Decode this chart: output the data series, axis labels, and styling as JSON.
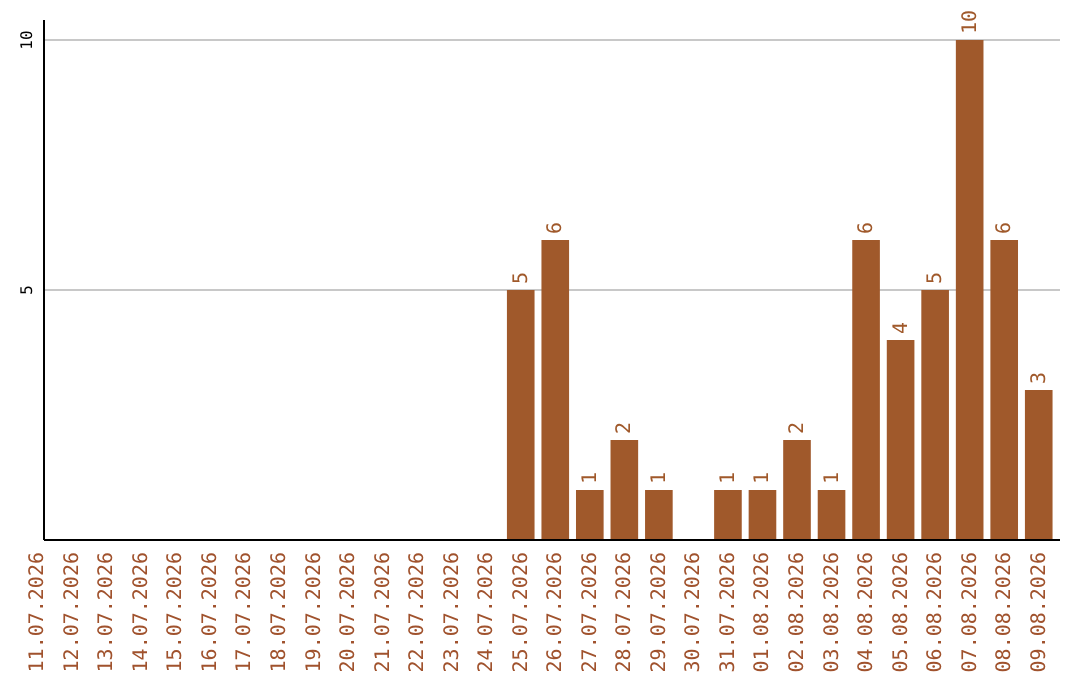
{
  "chart_data": {
    "type": "bar",
    "categories": [
      "11.07.2026",
      "12.07.2026",
      "13.07.2026",
      "14.07.2026",
      "15.07.2026",
      "16.07.2026",
      "17.07.2026",
      "18.07.2026",
      "19.07.2026",
      "20.07.2026",
      "21.07.2026",
      "22.07.2026",
      "23.07.2026",
      "24.07.2026",
      "25.07.2026",
      "26.07.2026",
      "27.07.2026",
      "28.07.2026",
      "29.07.2026",
      "30.07.2026",
      "31.07.2026",
      "01.08.2026",
      "02.08.2026",
      "03.08.2026",
      "04.08.2026",
      "05.08.2026",
      "06.08.2026",
      "07.08.2026",
      "08.08.2026",
      "09.08.2026"
    ],
    "values": [
      0,
      0,
      0,
      0,
      0,
      0,
      0,
      0,
      0,
      0,
      0,
      0,
      0,
      0,
      5,
      6,
      1,
      2,
      1,
      0,
      1,
      1,
      2,
      1,
      6,
      4,
      5,
      10,
      6,
      3
    ],
    "value_labels": [
      null,
      null,
      null,
      null,
      null,
      null,
      null,
      null,
      null,
      null,
      null,
      null,
      null,
      null,
      "5",
      "6",
      "1",
      "2",
      "1",
      null,
      "1",
      "1",
      "2",
      "1",
      "6",
      "4",
      "5",
      "10",
      "6",
      "3"
    ],
    "color": "#a0592b",
    "ylim": [
      0,
      10
    ],
    "yticks": [
      5,
      10
    ],
    "grid": "y"
  }
}
